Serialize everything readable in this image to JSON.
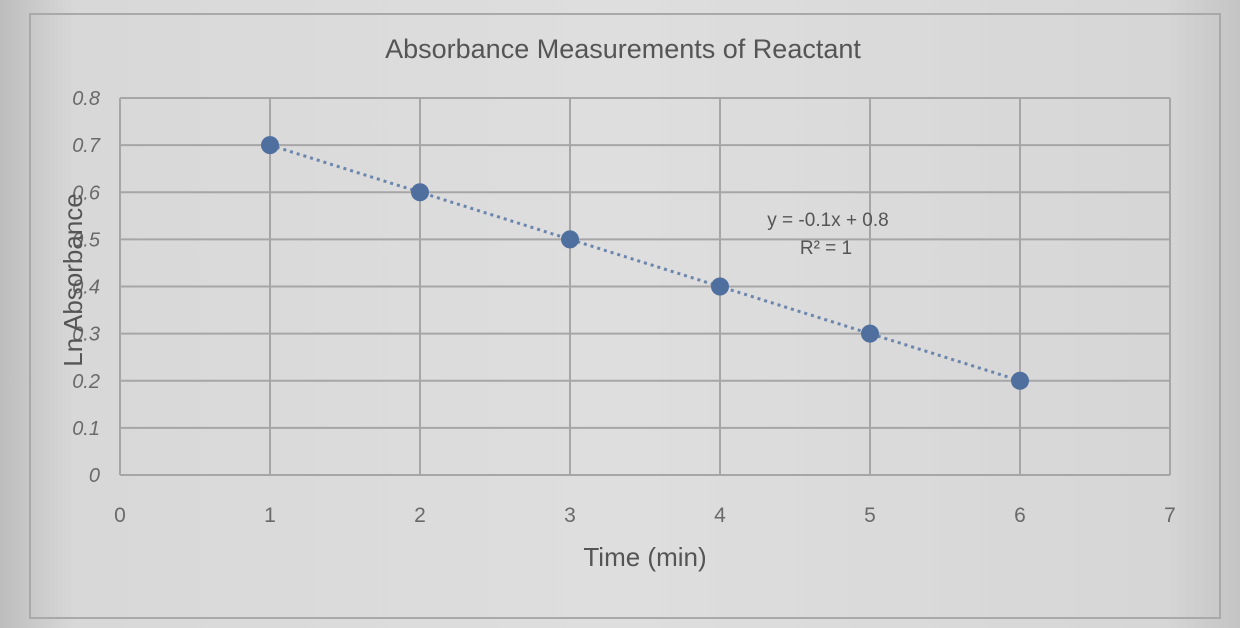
{
  "chart_data": {
    "type": "scatter",
    "title": "Absorbance Measurements of Reactant",
    "xlabel": "Time (min)",
    "ylabel": "Ln Absorbance",
    "xlim": [
      0,
      7
    ],
    "ylim": [
      0,
      0.8
    ],
    "xticks": [
      "0",
      "1",
      "2",
      "3",
      "4",
      "5",
      "6",
      "7"
    ],
    "yticks": [
      "0",
      "0.1",
      "0.2",
      "0.3",
      "0.4",
      "0.5",
      "0.6",
      "0.7",
      "0.8"
    ],
    "grid": true,
    "series": [
      {
        "x": [
          1,
          2,
          3,
          4,
          5,
          6
        ],
        "y": [
          0.7,
          0.6,
          0.5,
          0.4,
          0.3,
          0.2
        ],
        "color": "#4f6f9f"
      }
    ],
    "trendline": {
      "style": "dotted",
      "slope": -0.1,
      "intercept": 0.8,
      "equation": "y = -0.1x + 0.8",
      "r_squared": "R² = 1"
    }
  }
}
